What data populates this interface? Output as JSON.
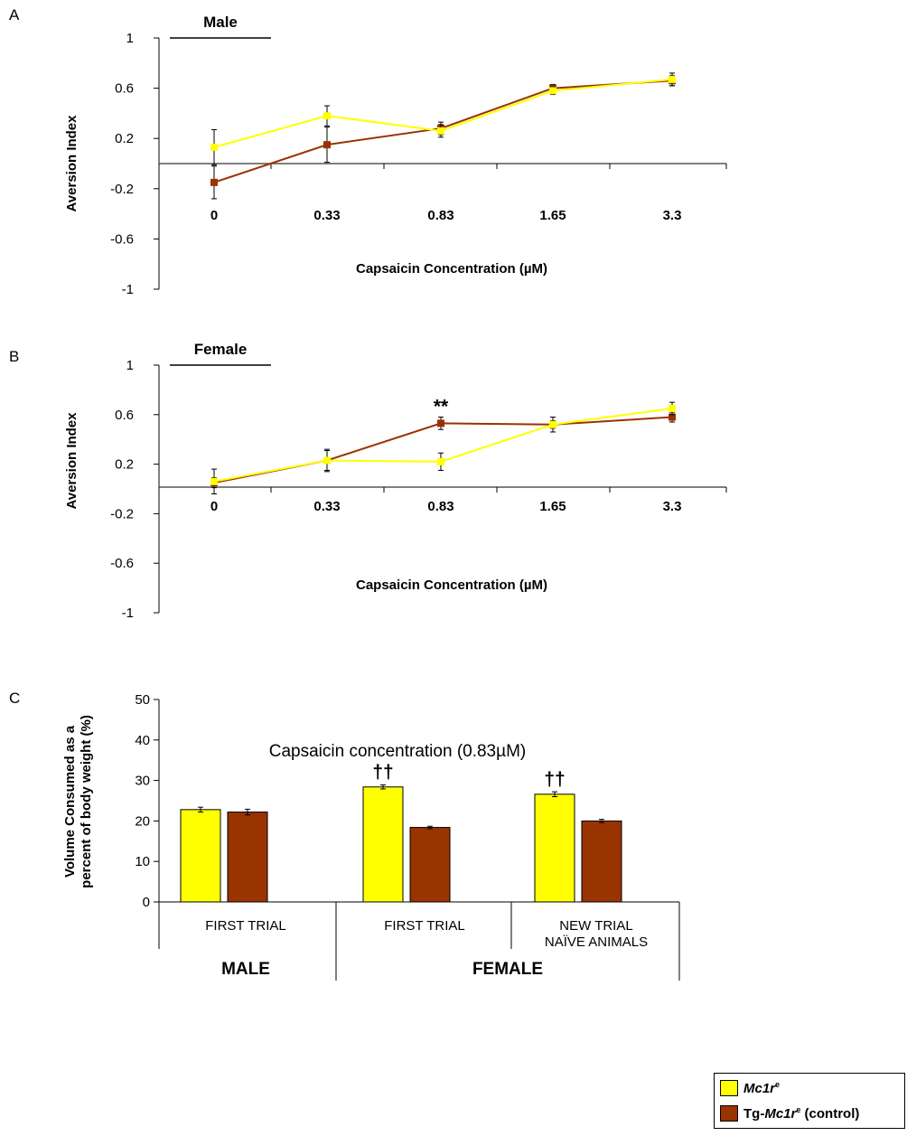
{
  "colors": {
    "yellow": "#ffff00",
    "brown": "#993300",
    "axis": "#000000",
    "zero_line": "#555555"
  },
  "legend": {
    "item1": {
      "gene": "Mc1r",
      "sup": "e",
      "suffix": "",
      "color": "#ffff00"
    },
    "item2": {
      "prefix": "Tg-",
      "gene": "Mc1r",
      "sup": "e",
      "suffix": " (control)",
      "color": "#993300"
    }
  },
  "chart_data": [
    {
      "panel": "A",
      "type": "line",
      "label": "Male",
      "ylabel": "Aversion Index",
      "xlabel": "Capsaicin Concentration (µM)",
      "categories": [
        "0",
        "0.33",
        "0.83",
        "1.65",
        "3.3"
      ],
      "yticks": [
        "1",
        "0.6",
        "0.2",
        "-0.2",
        "-0.6",
        "-1"
      ],
      "ylim": [
        -1,
        1
      ],
      "series": [
        {
          "color": "#ffff00",
          "values": [
            0.13,
            0.38,
            0.26,
            0.58,
            0.67
          ],
          "errors": [
            0.14,
            0.08,
            0.05,
            0.03,
            0.05
          ]
        },
        {
          "color": "#993300",
          "values": [
            -0.15,
            0.15,
            0.28,
            0.6,
            0.66
          ],
          "errors": [
            0.13,
            0.14,
            0.05,
            0.03,
            0.04
          ]
        }
      ]
    },
    {
      "panel": "B",
      "type": "line",
      "label": "Female",
      "ylabel": "Aversion Index",
      "xlabel": "Capsaicin Concentration (µM)",
      "categories": [
        "0",
        "0.33",
        "0.83",
        "1.65",
        "3.3"
      ],
      "yticks": [
        "1",
        "0.6",
        "0.2",
        "-0.2",
        "-0.6",
        "-1"
      ],
      "ylim": [
        -1,
        1
      ],
      "annotation": {
        "text": "**",
        "category_index": 2
      },
      "series": [
        {
          "color": "#ffff00",
          "values": [
            0.06,
            0.23,
            0.22,
            0.52,
            0.65
          ],
          "errors": [
            0.1,
            0.08,
            0.07,
            0.06,
            0.05
          ]
        },
        {
          "color": "#993300",
          "values": [
            0.05,
            0.23,
            0.53,
            0.52,
            0.58
          ],
          "errors": [
            0.04,
            0.09,
            0.05,
            0.03,
            0.04
          ]
        }
      ]
    },
    {
      "panel": "C",
      "type": "bar",
      "title": "Capsaicin concentration (0.83µM)",
      "ylabel_lines": [
        "Volume Consumed as a",
        "percent of body weight (%)"
      ],
      "yticks": [
        "50",
        "40",
        "30",
        "20",
        "10",
        "0"
      ],
      "ylim": [
        0,
        50
      ],
      "categories": [
        [
          "FIRST TRIAL"
        ],
        [
          "FIRST TRIAL"
        ],
        [
          "NEW TRIAL",
          "NAÏVE ANIMALS"
        ]
      ],
      "groups": [
        "MALE",
        "FEMALE"
      ],
      "annotations": [
        {
          "text": "††",
          "category_index": 1
        },
        {
          "text": "††",
          "category_index": 2
        }
      ],
      "series": [
        {
          "color": "#ffff00",
          "values": [
            22.8,
            28.4,
            26.6
          ],
          "errors": [
            0.6,
            0.5,
            0.6
          ]
        },
        {
          "color": "#993300",
          "values": [
            22.2,
            18.4,
            20.0
          ],
          "errors": [
            0.7,
            0.3,
            0.4
          ]
        }
      ]
    }
  ]
}
